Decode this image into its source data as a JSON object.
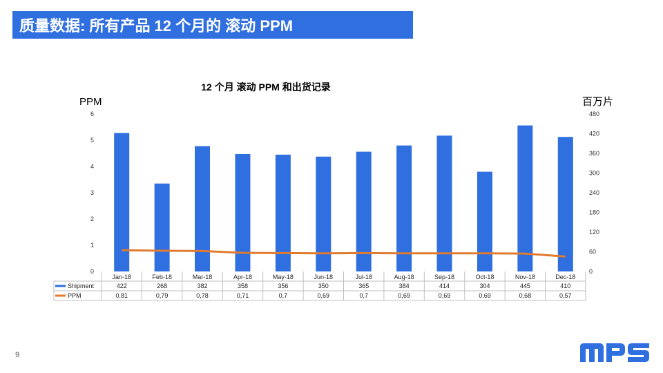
{
  "slide": {
    "title": "质量数据: 所有产品 12 个月的 滚动 PPM",
    "page_number": "9",
    "logo_text": "MPS",
    "brand_color": "#2f6fe0"
  },
  "chart_data": {
    "type": "bar",
    "title": "12 个月 滚动 PPM 和出货记录",
    "categories": [
      "Jan-18",
      "Feb-18",
      "Mar-18",
      "Apr-18",
      "May-18",
      "Jun-18",
      "Jul-18",
      "Aug-18",
      "Sep-18",
      "Oct-18",
      "Nov-18",
      "Dec-18"
    ],
    "series": [
      {
        "name": "Shipment",
        "type": "bar",
        "axis": "right",
        "color": "#2f6fe0",
        "values": [
          422,
          268,
          382,
          358,
          356,
          350,
          365,
          384,
          414,
          304,
          445,
          410
        ],
        "labels": [
          "422",
          "268",
          "382",
          "358",
          "356",
          "350",
          "365",
          "384",
          "414",
          "304",
          "445",
          "410"
        ]
      },
      {
        "name": "PPM",
        "type": "line",
        "axis": "left",
        "color": "#e07b30",
        "values": [
          0.81,
          0.79,
          0.78,
          0.71,
          0.7,
          0.69,
          0.7,
          0.69,
          0.69,
          0.69,
          0.68,
          0.57
        ],
        "labels": [
          "0,81",
          "0,79",
          "0,78",
          "0,71",
          "0,7",
          "0,69",
          "0,7",
          "0,69",
          "0,69",
          "0,69",
          "0,68",
          "0,57"
        ]
      }
    ],
    "y_left": {
      "label": "PPM",
      "range": [
        0,
        6
      ],
      "ticks": [
        "0",
        "1",
        "2",
        "3",
        "4",
        "5",
        "6"
      ]
    },
    "y_right": {
      "label": "百万片",
      "range": [
        0,
        480
      ],
      "ticks": [
        "0",
        "60",
        "120",
        "180",
        "240",
        "300",
        "360",
        "420",
        "480"
      ]
    },
    "grid": false,
    "legend": "data-table-bottom"
  }
}
